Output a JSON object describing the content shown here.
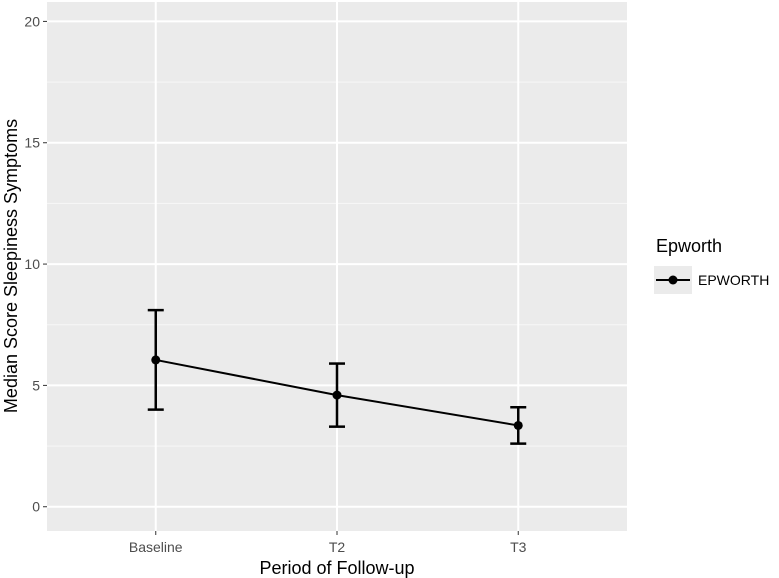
{
  "chart_data": {
    "type": "line",
    "xlabel": "Period of Follow-up",
    "ylabel": "Median Score Sleepiness Symptoms",
    "categories": [
      "Baseline",
      "T2",
      "T3"
    ],
    "ylim": [
      -1,
      20.8
    ],
    "yticks": [
      0,
      5,
      10,
      15,
      20
    ],
    "grid": true,
    "legend": {
      "title": "Epworth",
      "placement": "right",
      "entries": [
        "EPWORTH"
      ]
    },
    "series": [
      {
        "name": "EPWORTH",
        "values": [
          6.05,
          4.6,
          3.35
        ],
        "error_low": [
          4.0,
          3.3,
          2.6
        ],
        "error_high": [
          8.1,
          5.9,
          4.1
        ]
      }
    ],
    "colors": {
      "panel": "#ebebeb",
      "grid": "#ffffff",
      "line": "#000000"
    }
  }
}
